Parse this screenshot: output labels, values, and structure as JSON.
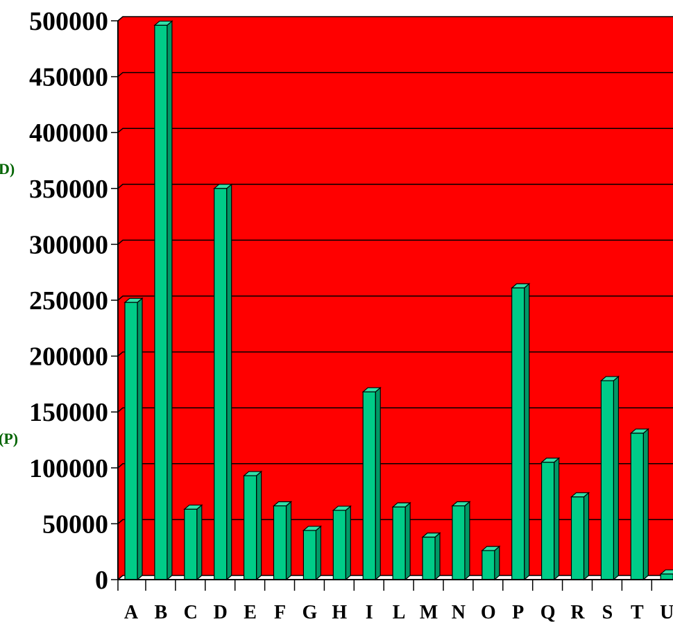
{
  "chart_data": {
    "type": "bar",
    "categories": [
      "A",
      "B",
      "C",
      "D",
      "E",
      "F",
      "G",
      "H",
      "I",
      "L",
      "M",
      "N",
      "O",
      "P",
      "Q",
      "R",
      "S",
      "T",
      "U"
    ],
    "values": [
      248000,
      496000,
      63000,
      350000,
      93000,
      66000,
      44000,
      62000,
      168000,
      65000,
      38000,
      66000,
      26000,
      261000,
      105000,
      74000,
      178000,
      131000,
      5000
    ],
    "ylim": [
      0,
      500000
    ],
    "yticks": [
      "0",
      "50000",
      "100000",
      "150000",
      "200000",
      "250000",
      "300000",
      "350000",
      "400000",
      "450000",
      "500000"
    ],
    "side_labels": [
      "D)",
      "(P)"
    ],
    "grid": true,
    "style": "3d",
    "colors": {
      "plot_background": "#ff0000",
      "bar": "#00cc88",
      "bar_side": "#009966",
      "bar_top": "#33e0a8",
      "gridline": "#000000",
      "side_label": "#006400"
    }
  }
}
